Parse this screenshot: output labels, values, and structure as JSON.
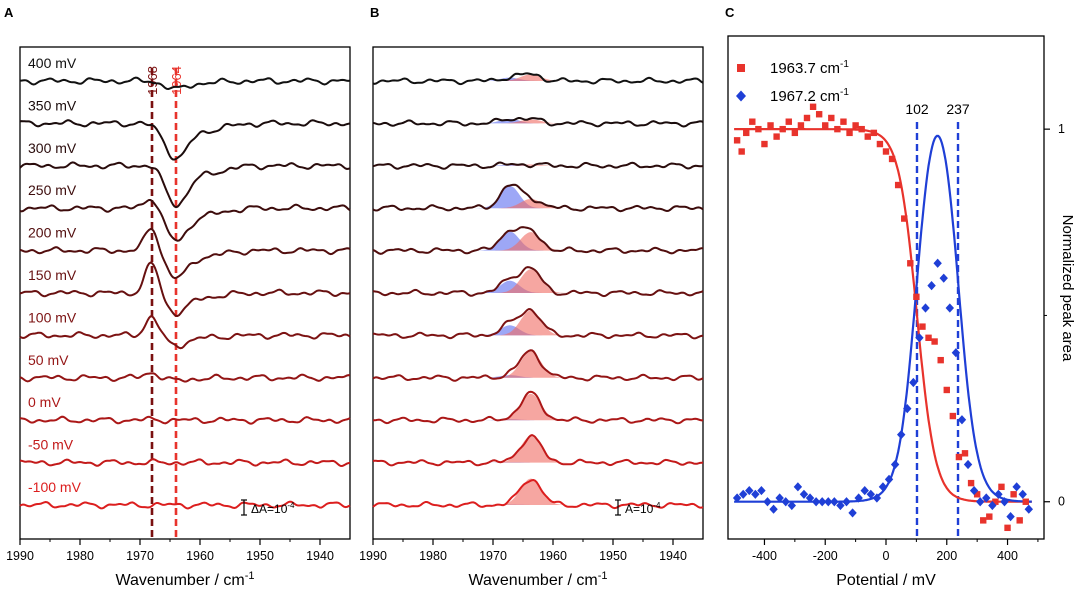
{
  "panel_a": {
    "letter": "A",
    "xlabel": "Wavenumber / cm",
    "xlabel_sup": "-1",
    "xticks": [
      "1990",
      "1980",
      "1970",
      "1960",
      "1950",
      "1940"
    ],
    "xlim": [
      1990,
      1935
    ],
    "markers": [
      {
        "label": "1968",
        "x": 1968,
        "color": "#7a1010"
      },
      {
        "label": "1964",
        "x": 1964,
        "color": "#e8332c"
      }
    ],
    "scale_bar": "ΔA=10",
    "scale_bar_sup": "-4",
    "traces": [
      {
        "label": "400 mV",
        "color": "#111111",
        "peak_1968": 0,
        "dip_1964": 0.9
      },
      {
        "label": "350 mV",
        "color": "#1a0c0c",
        "peak_1968": 0,
        "dip_1964": 3.9
      },
      {
        "label": "300 mV",
        "color": "#2a0c0c",
        "peak_1968": 0.3,
        "dip_1964": 4.3
      },
      {
        "label": "250 mV",
        "color": "#3d0c0c",
        "peak_1968": 1.6,
        "dip_1964": 3.6
      },
      {
        "label": "200 mV",
        "color": "#520e0e",
        "peak_1968": 3.1,
        "dip_1964": 3.0
      },
      {
        "label": "150 mV",
        "color": "#671010",
        "peak_1968": 3.9,
        "dip_1964": 2.2
      },
      {
        "label": "100 mV",
        "color": "#7c1212",
        "peak_1968": 2.4,
        "dip_1964": 1.1
      },
      {
        "label": "50 mV",
        "color": "#931515",
        "peak_1968": 0.7,
        "dip_1964": 0.3
      },
      {
        "label": "0 mV",
        "color": "#ab1717",
        "peak_1968": 0.1,
        "dip_1964": 0
      },
      {
        "label": "-50 mV",
        "color": "#c31a1a",
        "peak_1968": 0,
        "dip_1964": 0
      },
      {
        "label": "-100 mV",
        "color": "#dc1e1e",
        "peak_1968": 0,
        "dip_1964": 0
      }
    ]
  },
  "panel_b": {
    "letter": "B",
    "xlabel": "Wavenumber / cm",
    "xlabel_sup": "-1",
    "xticks": [
      "1990",
      "1980",
      "1970",
      "1960",
      "1950",
      "1940"
    ],
    "xlim": [
      1990,
      1935
    ],
    "scale_bar": "A=10",
    "scale_bar_sup": "-4",
    "traces": [
      {
        "color": "#111111",
        "blue": 0.15,
        "red": 0.25
      },
      {
        "color": "#1a0c0c",
        "blue": 0.2,
        "red": 0.15
      },
      {
        "color": "#2a0c0c",
        "blue": 0.05,
        "red": 0.05
      },
      {
        "color": "#3d0c0c",
        "blue": 1.0,
        "red": 0.35
      },
      {
        "color": "#520e0e",
        "blue": 0.85,
        "red": 0.7
      },
      {
        "color": "#671010",
        "blue": 0.55,
        "red": 0.9
      },
      {
        "color": "#7c1212",
        "blue": 0.45,
        "red": 0.95
      },
      {
        "color": "#931515",
        "blue": 0.12,
        "red": 1.0
      },
      {
        "color": "#ab1717",
        "blue": 0.05,
        "red": 1.0
      },
      {
        "color": "#c31a1a",
        "blue": 0.02,
        "red": 1.0
      },
      {
        "color": "#dc1e1e",
        "blue": 0.02,
        "red": 1.0
      }
    ]
  },
  "panel_c": {
    "letter": "C",
    "xlabel": "Potential / mV",
    "ylabel": "Normalized peak area",
    "xticks": [
      "-400",
      "-200",
      "0",
      "200",
      "400"
    ],
    "xtick_values": [
      -400,
      -200,
      0,
      200,
      400
    ],
    "yticks": [
      "1",
      "0"
    ],
    "ytick_values": [
      1,
      0
    ],
    "xlim": [
      -520,
      520
    ],
    "ylim": [
      -0.1,
      1.25
    ],
    "vlines": [
      {
        "label": "102",
        "x": 102
      },
      {
        "label": "237",
        "x": 237
      }
    ],
    "legend": [
      {
        "label": "1963.7 cm",
        "sup": "-1",
        "color": "#e8332c",
        "marker": "square"
      },
      {
        "label": "1967.2 cm",
        "sup": "-1",
        "color": "#1f3fd6",
        "marker": "diamond"
      }
    ]
  },
  "chart_data": {
    "type": "scatter",
    "title": "",
    "xlabel": "Potential / mV",
    "ylabel": "Normalized peak area",
    "xlim": [
      -520,
      520
    ],
    "ylim": [
      -0.1,
      1.25
    ],
    "series": [
      {
        "name": "1963.7 cm-1",
        "color": "#e8332c",
        "x": [
          -490,
          -475,
          -460,
          -440,
          -420,
          -400,
          -380,
          -360,
          -340,
          -320,
          -300,
          -280,
          -260,
          -240,
          -220,
          -200,
          -180,
          -160,
          -140,
          -120,
          -100,
          -80,
          -60,
          -40,
          -20,
          0,
          20,
          40,
          60,
          80,
          100,
          120,
          140,
          160,
          180,
          200,
          220,
          240,
          260,
          280,
          300,
          320,
          340,
          360,
          380,
          400,
          420,
          440,
          460
        ],
        "y": [
          0.97,
          0.94,
          0.99,
          1.02,
          1.0,
          0.96,
          1.01,
          0.98,
          1.0,
          1.02,
          0.99,
          1.01,
          1.03,
          1.06,
          1.04,
          1.01,
          1.03,
          1.0,
          1.02,
          0.99,
          1.01,
          1.0,
          0.98,
          0.99,
          0.96,
          0.94,
          0.92,
          0.85,
          0.76,
          0.64,
          0.55,
          0.47,
          0.44,
          0.43,
          0.38,
          0.3,
          0.23,
          0.12,
          0.13,
          0.05,
          0.02,
          -0.05,
          -0.04,
          0.0,
          0.04,
          -0.07,
          0.02,
          -0.05,
          0.0
        ]
      },
      {
        "name": "1967.2 cm-1",
        "color": "#1f3fd6",
        "x": [
          -490,
          -470,
          -450,
          -430,
          -410,
          -390,
          -370,
          -350,
          -330,
          -310,
          -290,
          -270,
          -250,
          -230,
          -210,
          -190,
          -170,
          -150,
          -130,
          -110,
          -90,
          -70,
          -50,
          -30,
          -10,
          10,
          30,
          50,
          70,
          90,
          110,
          130,
          150,
          170,
          190,
          210,
          230,
          250,
          270,
          290,
          310,
          330,
          350,
          370,
          390,
          410,
          430,
          450,
          470
        ],
        "y": [
          0.01,
          0.02,
          0.03,
          0.02,
          0.03,
          0.0,
          -0.02,
          0.01,
          0.0,
          -0.01,
          0.04,
          0.02,
          0.01,
          0.0,
          0.0,
          0.0,
          0.0,
          -0.01,
          0.0,
          -0.03,
          0.01,
          0.03,
          0.02,
          0.01,
          0.04,
          0.06,
          0.1,
          0.18,
          0.25,
          0.32,
          0.44,
          0.52,
          0.58,
          0.64,
          0.6,
          0.52,
          0.4,
          0.22,
          0.1,
          0.03,
          0.0,
          0.01,
          -0.01,
          0.02,
          0.0,
          -0.04,
          0.04,
          0.02,
          -0.02
        ]
      }
    ],
    "fits": [
      {
        "name": "1963.7 cm-1 fit",
        "color": "#e8332c",
        "kind": "sigmoid",
        "e_half": 102,
        "width": 30
      },
      {
        "name": "1967.2 cm-1 fit",
        "color": "#1f3fd6",
        "kind": "bell",
        "e1": 102,
        "e2": 237,
        "width": 30
      }
    ]
  }
}
